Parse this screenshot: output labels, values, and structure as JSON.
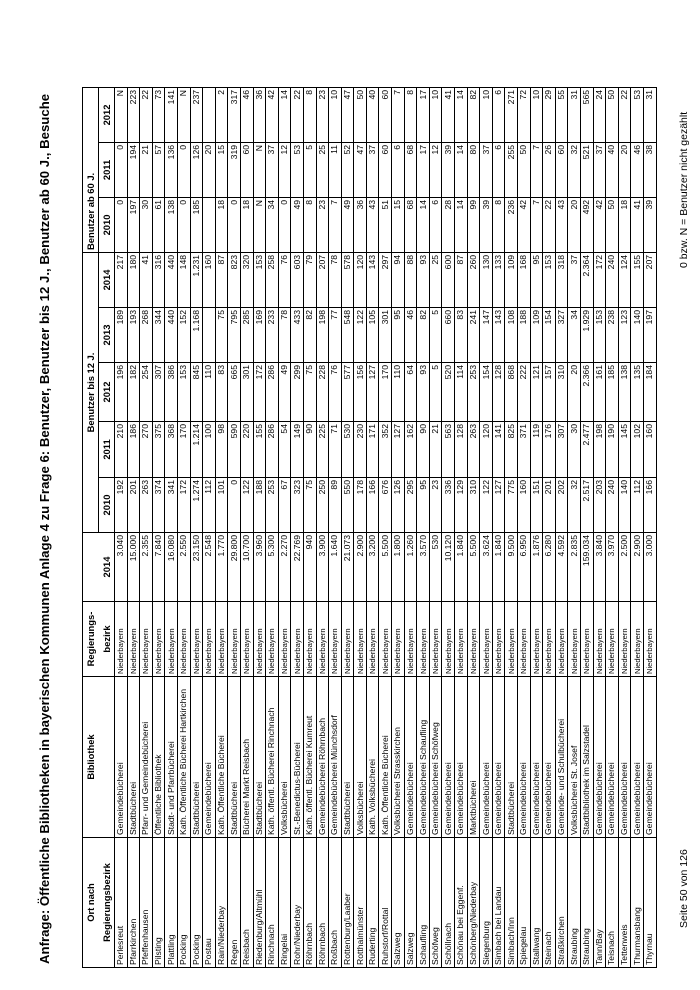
{
  "title": "Anfrage: Öffentliche Bibliotheken in bayerischen Kommunen Anlage 4 zu Frage 6: Benutzer, Benutzer bis 12 J., Benutzer ab 60 J., Besuche",
  "header": {
    "ort_top": "Ort nach",
    "ort_bottom": "Regierungsbezirk",
    "bibliothek": "Bibliothek",
    "bezirk_top": "Regierungs-",
    "bezirk_bottom": "bezirk",
    "benutzer_year": "2014",
    "bis12_group": "Benutzer bis 12 J.",
    "bis12_years": [
      "2010",
      "2011",
      "2012",
      "2013",
      "2014"
    ],
    "ab60_group": "Benutzer ab 60 J.",
    "ab60_years": [
      "2010",
      "2011",
      "2012"
    ]
  },
  "rows": [
    {
      "ort": "Perlesreut",
      "bibliothek": "Gemeindebücherei",
      "bezirk": "Niederbayern",
      "benutzer": "3.040",
      "bis12": [
        "192",
        "210",
        "196",
        "189",
        "217"
      ],
      "ab60": [
        "0",
        "0",
        "N"
      ]
    },
    {
      "ort": "Pfarrkirchen",
      "bibliothek": "Stadtbücherei",
      "bezirk": "Niederbayern",
      "benutzer": "15.000",
      "bis12": [
        "201",
        "186",
        "182",
        "193",
        "180"
      ],
      "ab60": [
        "197",
        "194",
        "223"
      ]
    },
    {
      "ort": "Pfeffenhausen",
      "bibliothek": "Pfarr- und Gemeindebücherei",
      "bezirk": "Niederbayern",
      "benutzer": "2.355",
      "bis12": [
        "263",
        "270",
        "254",
        "268",
        "41"
      ],
      "ab60": [
        "30",
        "21",
        "22"
      ]
    },
    {
      "ort": "Pilsting",
      "bibliothek": "Öffentliche Bibliothek",
      "bezirk": "Niederbayern",
      "benutzer": "7.840",
      "bis12": [
        "374",
        "375",
        "307",
        "344",
        "316"
      ],
      "ab60": [
        "61",
        "57",
        "73"
      ]
    },
    {
      "ort": "Plattling",
      "bibliothek": "Stadt- und Pfarrbücherei",
      "bezirk": "Niederbayern",
      "benutzer": "16.080",
      "bis12": [
        "341",
        "368",
        "386",
        "440",
        "440"
      ],
      "ab60": [
        "138",
        "136",
        "141"
      ]
    },
    {
      "ort": "Pocking",
      "bibliothek": "Kath. Öffentliche Bücherei Hartkirchen",
      "bezirk": "Niederbayern",
      "benutzer": "2.550",
      "bis12": [
        "172",
        "170",
        "153",
        "152",
        "148"
      ],
      "ab60": [
        "0",
        "0",
        "N"
      ]
    },
    {
      "ort": "Pocking",
      "bibliothek": "Stadtbücherei",
      "bezirk": "Niederbayern",
      "benutzer": "23.150",
      "bis12": [
        "1.274",
        "1.214",
        "845",
        "1.168",
        "1.231"
      ],
      "ab60": [
        "185",
        "126",
        "237"
      ]
    },
    {
      "ort": "Postau",
      "bibliothek": "Gemeindebücherei",
      "bezirk": "Niederbayern",
      "benutzer": "2.548",
      "bis12": [
        "112",
        "100",
        "110",
        "",
        "160"
      ],
      "ab60": [
        "",
        "20",
        ""
      ]
    },
    {
      "ort": "Rain/Niederbay",
      "bibliothek": "Kath. Öffentliche Bücherei",
      "bezirk": "Niederbayern",
      "benutzer": "1.770",
      "bis12": [
        "101",
        "98",
        "83",
        "75",
        "87"
      ],
      "ab60": [
        "18",
        "15",
        "2"
      ]
    },
    {
      "ort": "Regen",
      "bibliothek": "Stadtbücherei",
      "bezirk": "Niederbayern",
      "benutzer": "29.800",
      "bis12": [
        "0",
        "590",
        "665",
        "795",
        "823"
      ],
      "ab60": [
        "0",
        "319",
        "317"
      ]
    },
    {
      "ort": "Reisbach",
      "bibliothek": "Bücherei Markt Reisbach",
      "bezirk": "Niederbayern",
      "benutzer": "10.700",
      "bis12": [
        "122",
        "220",
        "301",
        "285",
        "320"
      ],
      "ab60": [
        "18",
        "60",
        "46"
      ]
    },
    {
      "ort": "Riedenburg/Altmühl",
      "bibliothek": "Stadtbücherei",
      "bezirk": "Niederbayern",
      "benutzer": "3.960",
      "bis12": [
        "188",
        "155",
        "172",
        "169",
        "153"
      ],
      "ab60": [
        "N",
        "N",
        "36"
      ]
    },
    {
      "ort": "Rinchnach",
      "bibliothek": "Kath. öffentl. Bücherei Rinchnach",
      "bezirk": "Niederbayern",
      "benutzer": "5.300",
      "bis12": [
        "253",
        "286",
        "286",
        "233",
        "258"
      ],
      "ab60": [
        "34",
        "37",
        "42"
      ]
    },
    {
      "ort": "Ringelai",
      "bibliothek": "Volksbücherei",
      "bezirk": "Niederbayern",
      "benutzer": "2.270",
      "bis12": [
        "67",
        "54",
        "49",
        "78",
        "76"
      ],
      "ab60": [
        "0",
        "12",
        "14"
      ]
    },
    {
      "ort": "Rohr/Niederbay",
      "bibliothek": "St.-Benedictus-Bücherei",
      "bezirk": "Niederbayern",
      "benutzer": "22.769",
      "bis12": [
        "323",
        "149",
        "299",
        "433",
        "603"
      ],
      "ab60": [
        "49",
        "53",
        "22"
      ]
    },
    {
      "ort": "Röhrnbach",
      "bibliothek": "Kath. öffentl. Bücherei Kumreut",
      "bezirk": "Niederbayern",
      "benutzer": "940",
      "bis12": [
        "75",
        "90",
        "75",
        "82",
        "79"
      ],
      "ab60": [
        "8",
        "5",
        "8"
      ]
    },
    {
      "ort": "Röhrnbach",
      "bibliothek": "Gemeindebücherei Röhrnbach",
      "bezirk": "Niederbayern",
      "benutzer": "3.900",
      "bis12": [
        "250",
        "225",
        "228",
        "198",
        "207"
      ],
      "ab60": [
        "23",
        "25",
        "23"
      ]
    },
    {
      "ort": "Roßbach",
      "bibliothek": "Gemeindebücherei Münchsdorf",
      "bezirk": "Niederbayern",
      "benutzer": "1.640",
      "bis12": [
        "89",
        "71",
        "76",
        "77",
        "78"
      ],
      "ab60": [
        "7",
        "11",
        "10"
      ]
    },
    {
      "ort": "Rottenburg/Laaber",
      "bibliothek": "Stadtbücherei",
      "bezirk": "Niederbayern",
      "benutzer": "21.073",
      "bis12": [
        "550",
        "530",
        "577",
        "548",
        "578"
      ],
      "ab60": [
        "49",
        "52",
        "47"
      ]
    },
    {
      "ort": "Rotthalmünster",
      "bibliothek": "Volksbücherei",
      "bezirk": "Niederbayern",
      "benutzer": "2.900",
      "bis12": [
        "178",
        "230",
        "156",
        "122",
        "120"
      ],
      "ab60": [
        "36",
        "47",
        "50"
      ]
    },
    {
      "ort": "Ruderting",
      "bibliothek": "Kath. Volksbücherei",
      "bezirk": "Niederbayern",
      "benutzer": "3.200",
      "bis12": [
        "166",
        "171",
        "127",
        "105",
        "143"
      ],
      "ab60": [
        "43",
        "37",
        "40"
      ]
    },
    {
      "ort": "Ruhstorf/Rottal",
      "bibliothek": "Kath. Öffentliche Bücherei",
      "bezirk": "Niederbayern",
      "benutzer": "5.500",
      "bis12": [
        "676",
        "352",
        "170",
        "301",
        "297"
      ],
      "ab60": [
        "51",
        "60",
        "60"
      ]
    },
    {
      "ort": "Salzweg",
      "bibliothek": "Volksbücherei Strasskirchen",
      "bezirk": "Niederbayern",
      "benutzer": "1.800",
      "bis12": [
        "126",
        "127",
        "110",
        "95",
        "94"
      ],
      "ab60": [
        "15",
        "6",
        "7"
      ]
    },
    {
      "ort": "Salzweg",
      "bibliothek": "Gemeindebücherei",
      "bezirk": "Niederbayern",
      "benutzer": "1.260",
      "bis12": [
        "295",
        "162",
        "64",
        "46",
        "88"
      ],
      "ab60": [
        "68",
        "68",
        "8"
      ]
    },
    {
      "ort": "Schaufling",
      "bibliothek": "Gemeindebücherei Schaufling",
      "bezirk": "Niederbayern",
      "benutzer": "3.570",
      "bis12": [
        "95",
        "90",
        "93",
        "82",
        "93"
      ],
      "ab60": [
        "14",
        "17",
        "17"
      ]
    },
    {
      "ort": "Schöfweg",
      "bibliothek": "Gemeindebücherei Schöfweg",
      "bezirk": "Niederbayern",
      "benutzer": "530",
      "bis12": [
        "23",
        "21",
        "5",
        "5",
        "25"
      ],
      "ab60": [
        "6",
        "12",
        "10"
      ]
    },
    {
      "ort": "Schöllnach",
      "bibliothek": "Gemeindebücherei",
      "bezirk": "Niederbayern",
      "benutzer": "10.120",
      "bis12": [
        "336",
        "563",
        "520",
        "660",
        "600"
      ],
      "ab60": [
        "28",
        "39",
        "41"
      ]
    },
    {
      "ort": "Schönau bei Eggenf.",
      "bibliothek": "Gemeindebücherei",
      "bezirk": "Niederbayern",
      "benutzer": "1.840",
      "bis12": [
        "129",
        "128",
        "114",
        "83",
        "87"
      ],
      "ab60": [
        "14",
        "14",
        "14"
      ]
    },
    {
      "ort": "Schönberg/Niederbay",
      "bibliothek": "Marktbücherei",
      "bezirk": "Niederbayern",
      "benutzer": "5.500",
      "bis12": [
        "310",
        "263",
        "253",
        "241",
        "260"
      ],
      "ab60": [
        "99",
        "80",
        "82"
      ]
    },
    {
      "ort": "Siegenburg",
      "bibliothek": "Gemeindebücherei",
      "bezirk": "Niederbayern",
      "benutzer": "3.624",
      "bis12": [
        "122",
        "120",
        "154",
        "147",
        "130"
      ],
      "ab60": [
        "39",
        "37",
        "10"
      ]
    },
    {
      "ort": "Simbach bei Landau",
      "bibliothek": "Gemeindebücherei",
      "bezirk": "Niederbayern",
      "benutzer": "1.840",
      "bis12": [
        "127",
        "141",
        "128",
        "143",
        "133"
      ],
      "ab60": [
        "8",
        "6",
        "6"
      ]
    },
    {
      "ort": "Simbach/Inn",
      "bibliothek": "Stadtbücherei",
      "bezirk": "Niederbayern",
      "benutzer": "9.500",
      "bis12": [
        "775",
        "825",
        "868",
        "108",
        "109"
      ],
      "ab60": [
        "236",
        "255",
        "271"
      ]
    },
    {
      "ort": "Spiegelau",
      "bibliothek": "Gemeindebücherei",
      "bezirk": "Niederbayern",
      "benutzer": "6.950",
      "bis12": [
        "160",
        "371",
        "222",
        "188",
        "168"
      ],
      "ab60": [
        "42",
        "50",
        "72"
      ]
    },
    {
      "ort": "Stallwang",
      "bibliothek": "Gemeindebücherei",
      "bezirk": "Niederbayern",
      "benutzer": "1.876",
      "bis12": [
        "151",
        "119",
        "121",
        "109",
        "95"
      ],
      "ab60": [
        "7",
        "7",
        "10"
      ]
    },
    {
      "ort": "Steinach",
      "bibliothek": "Gemeindebücherei",
      "bezirk": "Niederbayern",
      "benutzer": "6.280",
      "bis12": [
        "201",
        "176",
        "157",
        "154",
        "153"
      ],
      "ab60": [
        "22",
        "26",
        "29"
      ]
    },
    {
      "ort": "Straßkirchen",
      "bibliothek": "Gemeinde- und Schulbücherei",
      "bezirk": "Niederbayern",
      "benutzer": "4.592",
      "bis12": [
        "202",
        "307",
        "310",
        "327",
        "318"
      ],
      "ab60": [
        "43",
        "60",
        "55"
      ]
    },
    {
      "ort": "Straubing",
      "bibliothek": "Volksbücherei St. Josef",
      "bezirk": "Niederbayern",
      "benutzer": "2.835",
      "bis12": [
        "32",
        "30",
        "20",
        "34",
        "37"
      ],
      "ab60": [
        "20",
        "32",
        "31"
      ]
    },
    {
      "ort": "Straubing",
      "bibliothek": "Stadtbibliothek im Salzstadel",
      "bezirk": "Niederbayern",
      "benutzer": "159.034",
      "bis12": [
        "2.517",
        "2.477",
        "2.366",
        "1.929",
        "2.364"
      ],
      "ab60": [
        "492",
        "521",
        "565"
      ]
    },
    {
      "ort": "Tann/Bay",
      "bibliothek": "Gemeindebücherei",
      "bezirk": "Niederbayern",
      "benutzer": "3.840",
      "bis12": [
        "203",
        "198",
        "161",
        "153",
        "172"
      ],
      "ab60": [
        "42",
        "37",
        "24"
      ]
    },
    {
      "ort": "Teisnach",
      "bibliothek": "Gemeindebücherei",
      "bezirk": "Niederbayern",
      "benutzer": "3.970",
      "bis12": [
        "240",
        "190",
        "185",
        "238",
        "240"
      ],
      "ab60": [
        "50",
        "40",
        "50"
      ]
    },
    {
      "ort": "Tettenweis",
      "bibliothek": "Gemeindebücherei",
      "bezirk": "Niederbayern",
      "benutzer": "2.500",
      "bis12": [
        "140",
        "145",
        "138",
        "123",
        "124"
      ],
      "ab60": [
        "18",
        "20",
        "22"
      ]
    },
    {
      "ort": "Thurmansbang",
      "bibliothek": "Gemeindebücherei",
      "bezirk": "Niederbayern",
      "benutzer": "2.900",
      "bis12": [
        "112",
        "102",
        "135",
        "140",
        "155"
      ],
      "ab60": [
        "41",
        "46",
        "53"
      ]
    },
    {
      "ort": "Thyrnau",
      "bibliothek": "Gemeindebücherei",
      "bezirk": "Niederbayern",
      "benutzer": "3.000",
      "bis12": [
        "166",
        "160",
        "184",
        "197",
        "207"
      ],
      "ab60": [
        "39",
        "38",
        "31"
      ]
    }
  ],
  "footer": {
    "page": "Seite 50 von 126",
    "note": "0 bzw. N = Benutzer nicht gezählt"
  }
}
